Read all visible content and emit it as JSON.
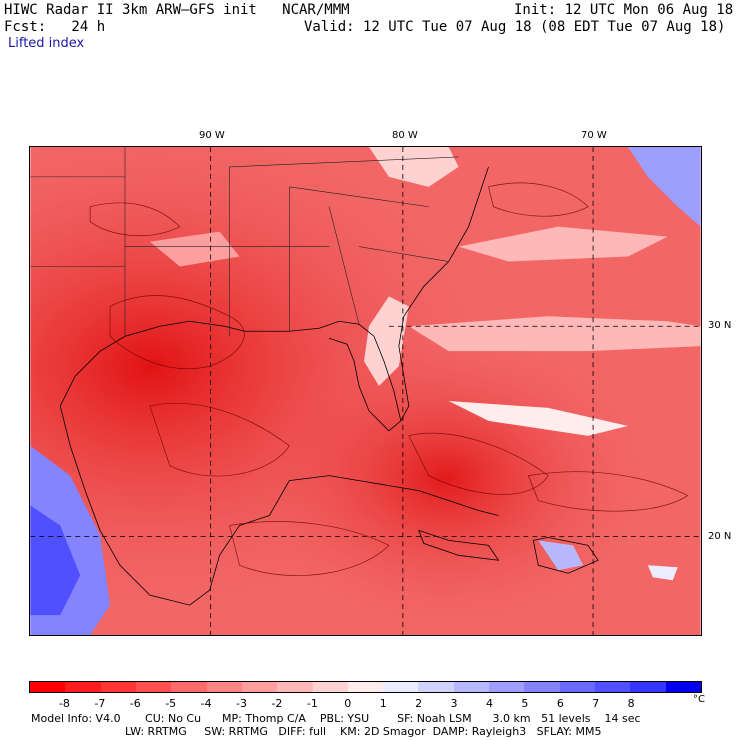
{
  "header": {
    "title": "HIWC Radar II 3km ARW–GFS init   NCAR/MMM",
    "init": "Init: 12 UTC Mon 06 Aug 18",
    "fcst_label": "Fcst:   24 h",
    "valid": "Valid: 12 UTC Tue 07 Aug 18 (08 EDT Tue 07 Aug 18)",
    "field": "Lifted index"
  },
  "map": {
    "lon_labels": [
      "90 W",
      "80 W",
      "70 W"
    ],
    "lat_labels": [
      "30 N",
      "20 N"
    ]
  },
  "colorbar": {
    "ticks": [
      "-8",
      "-7",
      "-6",
      "-5",
      "-4",
      "-3",
      "-2",
      "-1",
      "0",
      "1",
      "2",
      "3",
      "4",
      "5",
      "6",
      "7",
      "8"
    ],
    "unit": "°C",
    "colors": [
      "#ff0000",
      "#ff1c1c",
      "#ff3636",
      "#ff5050",
      "#ff6a6a",
      "#ff8484",
      "#ff9e9e",
      "#ffb8b8",
      "#ffd2d2",
      "#ffecec",
      "#ececff",
      "#d2d2ff",
      "#b8b8ff",
      "#9e9eff",
      "#8484ff",
      "#6a6aff",
      "#5050ff",
      "#3636ff",
      "#0000ee"
    ]
  },
  "model_info": {
    "line1": "Model Info: V4.0       CU: No Cu      MP: Thomp C/A    PBL: YSU        SF: Noah LSM      3.0 km   51 levels    14 sec",
    "line2": "LW: RRTMG     SW: RRTMG   DIFF: full    KM: 2D Smagor  DAMP: Rayleigh3   SFLAY: MM5"
  }
}
